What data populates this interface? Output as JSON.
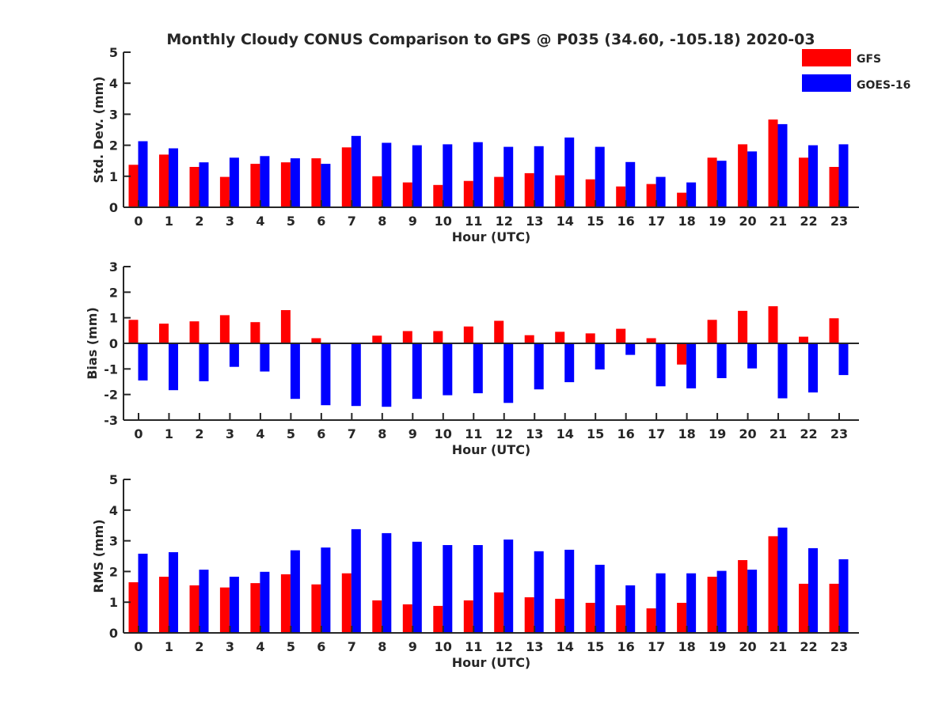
{
  "figure_title": "Monthly Cloudy CONUS Comparison to GPS @ P035 (34.60, -105.18) 2020-03",
  "legend": [
    {
      "label": "GFS",
      "color": "#ff0000"
    },
    {
      "label": "GOES-16",
      "color": "#0000ff"
    }
  ],
  "chart_data": [
    {
      "type": "bar",
      "title": "Monthly Cloudy CONUS Comparison to GPS @ P035 (34.60, -105.18) 2020-03",
      "xlabel": "Hour (UTC)",
      "ylabel": "Std. Dev. (mm)",
      "ylim": [
        0,
        5
      ],
      "yticks": [
        "0",
        "1",
        "2",
        "3",
        "4",
        "5"
      ],
      "categories": [
        "0",
        "1",
        "2",
        "3",
        "4",
        "5",
        "6",
        "7",
        "8",
        "9",
        "10",
        "11",
        "12",
        "13",
        "14",
        "15",
        "16",
        "17",
        "18",
        "19",
        "20",
        "21",
        "22",
        "23"
      ],
      "legend_position": "top-right",
      "series": [
        {
          "name": "GFS",
          "color": "#ff0000",
          "values": [
            1.37,
            1.7,
            1.3,
            0.98,
            1.4,
            1.45,
            1.58,
            1.93,
            1.0,
            0.8,
            0.72,
            0.85,
            0.98,
            1.1,
            1.03,
            0.9,
            0.67,
            0.75,
            0.47,
            1.6,
            2.03,
            2.83,
            1.6,
            1.3
          ]
        },
        {
          "name": "GOES-16",
          "color": "#0000ff",
          "values": [
            2.13,
            1.9,
            1.45,
            1.6,
            1.65,
            1.58,
            1.4,
            2.3,
            2.08,
            2.0,
            2.03,
            2.1,
            1.95,
            1.97,
            2.25,
            1.95,
            1.46,
            0.98,
            0.8,
            1.5,
            1.8,
            2.68,
            2.0,
            2.03
          ]
        }
      ]
    },
    {
      "type": "bar",
      "title": "",
      "xlabel": "Hour (UTC)",
      "ylabel": "Bias (mm)",
      "ylim": [
        -3,
        3
      ],
      "yticks": [
        "-3",
        "-2",
        "-1",
        "0",
        "1",
        "2",
        "3"
      ],
      "categories": [
        "0",
        "1",
        "2",
        "3",
        "4",
        "5",
        "6",
        "7",
        "8",
        "9",
        "10",
        "11",
        "12",
        "13",
        "14",
        "15",
        "16",
        "17",
        "18",
        "19",
        "20",
        "21",
        "22",
        "23"
      ],
      "series": [
        {
          "name": "GFS",
          "color": "#ff0000",
          "values": [
            0.92,
            0.77,
            0.86,
            1.1,
            0.83,
            1.3,
            0.2,
            0.03,
            0.3,
            0.48,
            0.48,
            0.66,
            0.88,
            0.32,
            0.45,
            0.39,
            0.57,
            0.2,
            -0.83,
            0.92,
            1.27,
            1.45,
            0.26,
            0.98
          ]
        },
        {
          "name": "GOES-16",
          "color": "#0000ff",
          "values": [
            -1.45,
            -1.83,
            -1.48,
            -0.92,
            -1.1,
            -2.17,
            -2.42,
            -2.45,
            -2.48,
            -2.17,
            -2.03,
            -1.95,
            -2.33,
            -1.8,
            -1.52,
            -1.02,
            -0.45,
            -1.68,
            -1.76,
            -1.36,
            -0.98,
            -2.15,
            -1.92,
            -1.24
          ]
        }
      ]
    },
    {
      "type": "bar",
      "title": "",
      "xlabel": "Hour (UTC)",
      "ylabel": "RMS (mm)",
      "ylim": [
        0,
        5
      ],
      "yticks": [
        "0",
        "1",
        "2",
        "3",
        "4",
        "5"
      ],
      "categories": [
        "0",
        "1",
        "2",
        "3",
        "4",
        "5",
        "6",
        "7",
        "8",
        "9",
        "10",
        "11",
        "12",
        "13",
        "14",
        "15",
        "16",
        "17",
        "18",
        "19",
        "20",
        "21",
        "22",
        "23"
      ],
      "series": [
        {
          "name": "GFS",
          "color": "#ff0000",
          "values": [
            1.65,
            1.83,
            1.55,
            1.48,
            1.62,
            1.91,
            1.58,
            1.94,
            1.06,
            0.93,
            0.88,
            1.06,
            1.32,
            1.16,
            1.11,
            0.98,
            0.9,
            0.8,
            0.98,
            1.83,
            2.37,
            3.15,
            1.6,
            1.6
          ]
        },
        {
          "name": "GOES-16",
          "color": "#0000ff",
          "values": [
            2.58,
            2.63,
            2.06,
            1.83,
            1.99,
            2.69,
            2.78,
            3.38,
            3.25,
            2.97,
            2.86,
            2.86,
            3.04,
            2.66,
            2.71,
            2.22,
            1.55,
            1.94,
            1.94,
            2.02,
            2.06,
            3.43,
            2.76,
            2.4
          ]
        }
      ]
    }
  ]
}
